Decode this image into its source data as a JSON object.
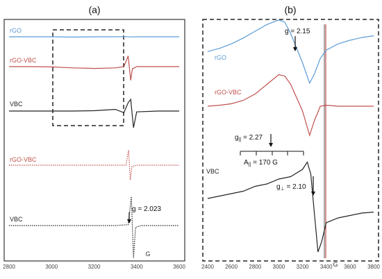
{
  "chart_data": [
    {
      "panel": "(a)",
      "type": "line",
      "x_ticks": [
        "2800",
        "3000",
        "3200",
        "3400",
        "3600"
      ],
      "x_unit": "G",
      "xlim": [
        2800,
        3600
      ],
      "grid": false,
      "series_labels": [
        "rGO",
        "rGO-VBC",
        "VBC",
        "rGO-VBC",
        "VBC"
      ],
      "annotations": [
        "g = 2.023"
      ],
      "series": [
        {
          "name": "rGO",
          "color": "#5b9bd5",
          "style": "solid",
          "x": [
            2800,
            2900,
            3000,
            3100,
            3200,
            3300,
            3350,
            3380,
            3400,
            3500,
            3600
          ],
          "y": [
            0.2,
            0.2,
            0.2,
            0.18,
            0.2,
            0.2,
            0.21,
            0.19,
            0.2,
            0.2,
            0.2
          ]
        },
        {
          "name": "rGO-VBC",
          "color": "#c0504d",
          "style": "solid",
          "x": [
            2800,
            2900,
            3000,
            3100,
            3200,
            3300,
            3340,
            3360,
            3372,
            3380,
            3400,
            3500,
            3600
          ],
          "y": [
            0.2,
            0.2,
            0.18,
            0.12,
            0.08,
            0.12,
            0.2,
            0.9,
            -0.7,
            0.05,
            0.2,
            0.2,
            0.2
          ]
        },
        {
          "name": "VBC",
          "color": "#222222",
          "style": "solid",
          "x": [
            2800,
            2900,
            3000,
            3100,
            3200,
            3300,
            3340,
            3360,
            3372,
            3385,
            3400,
            3500,
            3600
          ],
          "y": [
            0.2,
            0.2,
            0.2,
            0.2,
            0.22,
            0.3,
            0.1,
            0.7,
            0.9,
            -0.8,
            0.15,
            0.2,
            0.2
          ]
        },
        {
          "name": "rGO-VBC",
          "color": "#c0504d",
          "style": "dotted",
          "x": [
            2800,
            2900,
            3000,
            3100,
            3200,
            3300,
            3350,
            3362,
            3370,
            3378,
            3400,
            3500,
            3600
          ],
          "y": [
            0.2,
            0.2,
            0.2,
            0.2,
            0.2,
            0.2,
            0.2,
            1.4,
            -1.0,
            0.1,
            0.2,
            0.2,
            0.2
          ]
        },
        {
          "name": "VBC",
          "color": "#222222",
          "style": "dotted",
          "x": [
            2800,
            2900,
            3000,
            3100,
            3200,
            3300,
            3360,
            3375,
            3385,
            3395,
            3420,
            3500,
            3600
          ],
          "y": [
            0.2,
            0.2,
            0.2,
            0.2,
            0.2,
            0.2,
            0.25,
            1.8,
            -1.6,
            0.1,
            0.2,
            0.2,
            0.2
          ]
        }
      ]
    },
    {
      "panel": "(b)",
      "type": "line",
      "x_ticks": [
        "2400",
        "2600",
        "2800",
        "3000",
        "3200",
        "3400",
        "3600",
        "3800"
      ],
      "x_unit": "G",
      "xlim": [
        2400,
        3800
      ],
      "grid": false,
      "series_labels": [
        "rGO",
        "rGO-VBC",
        "VBC"
      ],
      "annotations": [
        "g = 2.15",
        "g|| = 2.27",
        "A|| = 170 G",
        "g⊥ = 2.10"
      ],
      "series": [
        {
          "name": "rGO",
          "color": "#5b9bd5",
          "style": "solid",
          "x": [
            2400,
            2500,
            2600,
            2700,
            2800,
            2900,
            3000,
            3050,
            3100,
            3200,
            3260,
            3300,
            3350,
            3400,
            3500,
            3600,
            3700,
            3800
          ],
          "y": [
            0.55,
            0.62,
            0.72,
            0.85,
            1.0,
            1.15,
            1.25,
            1.2,
            0.95,
            0.3,
            -0.15,
            0.05,
            0.4,
            0.58,
            0.72,
            0.8,
            0.86,
            0.9
          ]
        },
        {
          "name": "rGO-VBC",
          "color": "#c0504d",
          "style": "solid",
          "x": [
            2400,
            2500,
            2600,
            2700,
            2800,
            2900,
            3000,
            3050,
            3100,
            3200,
            3260,
            3300,
            3350,
            3400,
            3500,
            3600,
            3700,
            3800
          ],
          "y": [
            0.1,
            0.12,
            0.15,
            0.22,
            0.35,
            0.55,
            0.75,
            0.72,
            0.55,
            0.0,
            -0.5,
            -0.2,
            0.1,
            0.12,
            0.1,
            0.1,
            0.1,
            0.1
          ]
        },
        {
          "name": "VBC",
          "color": "#222222",
          "style": "solid",
          "x": [
            2400,
            2500,
            2600,
            2700,
            2800,
            2900,
            3000,
            3100,
            3200,
            3240,
            3270,
            3300,
            3330,
            3360,
            3400,
            3500,
            3600,
            3700,
            3800
          ],
          "y": [
            -0.3,
            -0.25,
            -0.2,
            -0.15,
            -0.05,
            0.0,
            0.1,
            0.15,
            0.3,
            0.45,
            0.2,
            -0.6,
            -1.4,
            -1.2,
            -0.8,
            -0.7,
            -0.65,
            -0.6,
            -0.58
          ]
        }
      ]
    }
  ]
}
